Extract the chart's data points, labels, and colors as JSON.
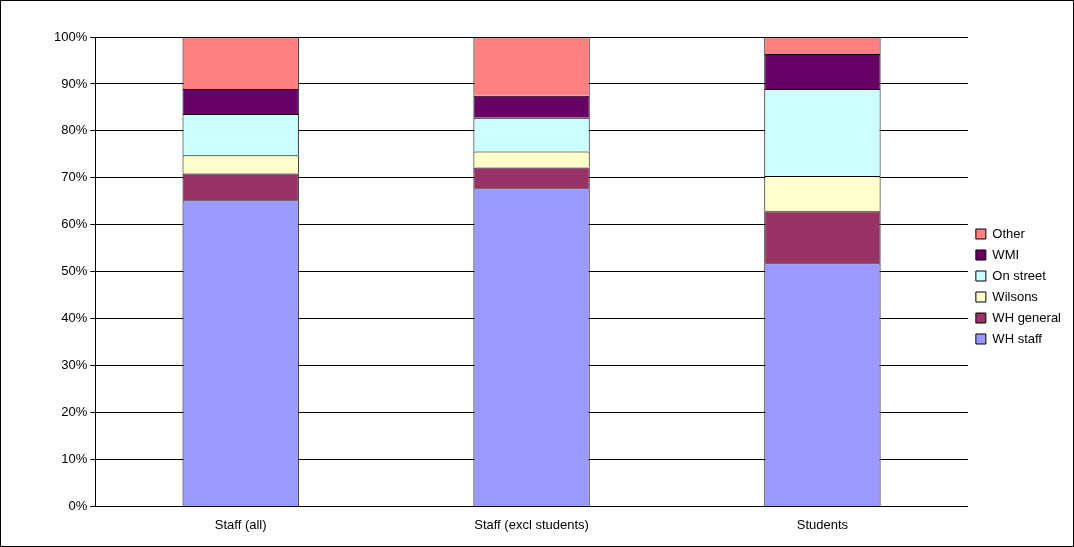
{
  "chart_data": {
    "type": "bar",
    "stacked": true,
    "categories": [
      "Staff (all)",
      "Staff (excl students)",
      "Students"
    ],
    "series": [
      {
        "name": "WH staff",
        "color": "#9999ff",
        "values": [
          65.2,
          67.8,
          51.8
        ]
      },
      {
        "name": "WH general",
        "color": "#993366",
        "values": [
          5.7,
          4.4,
          11.1
        ]
      },
      {
        "name": "Wilsons",
        "color": "#ffffcc",
        "values": [
          3.9,
          3.4,
          7.5
        ]
      },
      {
        "name": "On street",
        "color": "#ccffff",
        "values": [
          8.8,
          7.2,
          18.5
        ]
      },
      {
        "name": "WMI",
        "color": "#660066",
        "values": [
          5.3,
          4.7,
          7.5
        ]
      },
      {
        "name": "Other",
        "color": "#ff8080",
        "values": [
          11.1,
          12.5,
          3.6
        ]
      }
    ],
    "ylim": [
      0,
      100
    ],
    "yticks": [
      {
        "value": 0,
        "label": "0%"
      },
      {
        "value": 10,
        "label": "10%"
      },
      {
        "value": 20,
        "label": "20%"
      },
      {
        "value": 30,
        "label": "30%"
      },
      {
        "value": 40,
        "label": "40%"
      },
      {
        "value": 50,
        "label": "50%"
      },
      {
        "value": 60,
        "label": "60%"
      },
      {
        "value": 70,
        "label": "70%"
      },
      {
        "value": 80,
        "label": "80%"
      },
      {
        "value": 90,
        "label": "90%"
      },
      {
        "value": 100,
        "label": "100%"
      }
    ],
    "grid": "y",
    "legend": "right"
  }
}
